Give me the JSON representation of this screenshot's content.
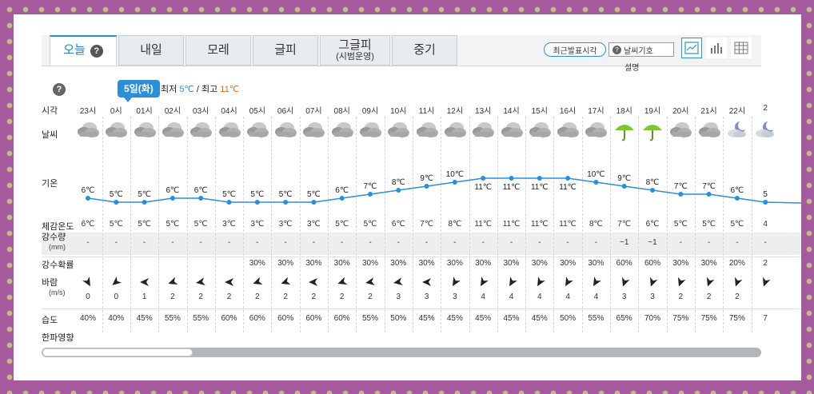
{
  "tabs": [
    {
      "label": "오늘",
      "sub": ""
    },
    {
      "label": "내일",
      "sub": ""
    },
    {
      "label": "모레",
      "sub": ""
    },
    {
      "label": "글피",
      "sub": ""
    },
    {
      "label": "그글피",
      "sub": "(시범운영)"
    },
    {
      "label": "중기",
      "sub": ""
    }
  ],
  "controls": {
    "latest_label": "최근발표시각",
    "weather_symbol_label": "날씨기호",
    "weather_symbol_caption": "설명",
    "help_mark": "?"
  },
  "date": {
    "badge": "5일(화)",
    "min_label": "최저",
    "min_value": "5℃",
    "separator": "/",
    "max_label": "최고",
    "max_value": "11℃"
  },
  "row_labels": {
    "time": "시각",
    "weather": "날씨",
    "temp": "기온",
    "feels": "체감온도",
    "precip": "강수량",
    "precip_unit": "(mm)",
    "prob": "강수확률",
    "wind": "바람",
    "wind_unit": "(m/s)",
    "humidity": "습도",
    "cold": "한파영향"
  },
  "hours": [
    "23시",
    "0시",
    "01시",
    "02시",
    "03시",
    "04시",
    "05시",
    "06시",
    "07시",
    "08시",
    "09시",
    "10시",
    "11시",
    "12시",
    "13시",
    "14시",
    "15시",
    "16시",
    "17시",
    "18시",
    "19시",
    "20시",
    "21시",
    "22시",
    "2"
  ],
  "weather_icons": [
    "cloudy",
    "cloudy",
    "cloudy",
    "cloudy",
    "cloudy",
    "cloudy",
    "cloudy",
    "cloudy",
    "cloudy",
    "cloudy",
    "cloudy",
    "cloudy",
    "cloudy",
    "cloudy",
    "cloudy",
    "cloudy",
    "cloudy",
    "cloudy",
    "cloudy",
    "umbrella-rain",
    "umbrella-rain",
    "cloudy",
    "cloudy",
    "moon-cloud",
    "moon-cloud"
  ],
  "temps": [
    6,
    5,
    5,
    6,
    6,
    5,
    5,
    5,
    5,
    6,
    7,
    8,
    9,
    10,
    11,
    11,
    11,
    11,
    10,
    9,
    8,
    7,
    7,
    6,
    5
  ],
  "temp_labels": [
    "6℃",
    "5℃",
    "5℃",
    "6℃",
    "6℃",
    "5℃",
    "5℃",
    "5℃",
    "5℃",
    "6℃",
    "7℃",
    "8℃",
    "9℃",
    "10℃",
    "11℃",
    "11℃",
    "11℃",
    "11℃",
    "10℃",
    "9℃",
    "8℃",
    "7℃",
    "7℃",
    "6℃",
    "5"
  ],
  "feels": [
    "6℃",
    "5℃",
    "5℃",
    "5℃",
    "5℃",
    "3℃",
    "3℃",
    "3℃",
    "3℃",
    "5℃",
    "5℃",
    "6℃",
    "7℃",
    "8℃",
    "11℃",
    "11℃",
    "11℃",
    "11℃",
    "8℃",
    "7℃",
    "6℃",
    "5℃",
    "5℃",
    "5℃",
    "4"
  ],
  "precip": [
    "-",
    "-",
    "-",
    "-",
    "-",
    "-",
    "-",
    "-",
    "-",
    "-",
    "-",
    "-",
    "-",
    "-",
    "-",
    "-",
    "-",
    "-",
    "-",
    "~1",
    "~1",
    "-",
    "-",
    "-",
    "-"
  ],
  "prob": [
    "",
    "",
    "",
    "",
    "",
    "",
    "30%",
    "30%",
    "30%",
    "30%",
    "30%",
    "30%",
    "30%",
    "30%",
    "30%",
    "30%",
    "30%",
    "30%",
    "30%",
    "60%",
    "60%",
    "30%",
    "30%",
    "20%",
    "2"
  ],
  "wind_speed": [
    "0",
    "0",
    "1",
    "2",
    "2",
    "2",
    "2",
    "2",
    "2",
    "2",
    "2",
    "3",
    "3",
    "3",
    "4",
    "4",
    "4",
    "4",
    "4",
    "3",
    "3",
    "2",
    "2",
    "2",
    ""
  ],
  "wind_dir_deg": [
    150,
    230,
    270,
    250,
    260,
    270,
    250,
    250,
    270,
    250,
    260,
    260,
    270,
    210,
    210,
    210,
    210,
    210,
    210,
    200,
    200,
    200,
    200,
    200,
    200
  ],
  "humidity": [
    "40%",
    "40%",
    "45%",
    "55%",
    "55%",
    "60%",
    "60%",
    "60%",
    "60%",
    "60%",
    "55%",
    "50%",
    "45%",
    "45%",
    "45%",
    "45%",
    "45%",
    "50%",
    "55%",
    "65%",
    "70%",
    "75%",
    "75%",
    "75%",
    "7"
  ],
  "colors": {
    "accent": "#2a8fd8",
    "temp_line": "#2a8fd8",
    "min_temp": "#2a8fd8",
    "max_temp": "#d66a1a",
    "umbrella": "#7cc62f",
    "background": "#a45a9c"
  }
}
